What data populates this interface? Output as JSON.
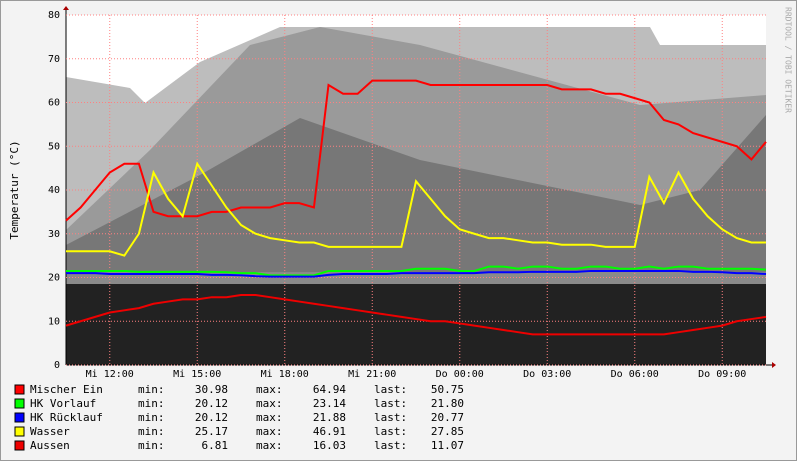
{
  "chart_data": {
    "type": "line",
    "y_label": "Temperatur (°C)",
    "watermark": "RRDTOOL / TOBI OETIKER",
    "categories": [
      null,
      null,
      null,
      "Mi 12:00",
      null,
      null,
      null,
      null,
      null,
      "Mi 15:00",
      null,
      null,
      null,
      null,
      null,
      "Mi 18:00",
      null,
      null,
      null,
      null,
      null,
      "Mi 21:00",
      null,
      null,
      null,
      null,
      null,
      "Do 00:00",
      null,
      null,
      null,
      null,
      null,
      "Do 03:00",
      null,
      null,
      null,
      null,
      null,
      "Do 06:00",
      null,
      null,
      null,
      null,
      null,
      "Do 09:00",
      null,
      null,
      null
    ],
    "ylim": [
      0,
      80
    ],
    "yticks": [
      0,
      10,
      20,
      30,
      40,
      50,
      60,
      70,
      80
    ],
    "grid": true,
    "stat_labels": [
      "min:",
      "max:",
      "last:"
    ],
    "series": [
      {
        "name": "Mischer Ein",
        "color": "#ff0000",
        "stats": [
          "30.98",
          "64.94",
          "50.75"
        ],
        "values": [
          33,
          36,
          40,
          44,
          46,
          46,
          35,
          34,
          34,
          34,
          35,
          35,
          36,
          36,
          36,
          37,
          37,
          36,
          64,
          62,
          62,
          65,
          65,
          65,
          65,
          64,
          64,
          64,
          64,
          64,
          64,
          64,
          64,
          64,
          63,
          63,
          63,
          62,
          62,
          61,
          60,
          56,
          55,
          53,
          52,
          51,
          50,
          47,
          51
        ]
      },
      {
        "name": "HK Vorlauf",
        "color": "#00ff00",
        "stats": [
          "20.12",
          "23.14",
          "21.80"
        ],
        "values": [
          21.5,
          21.5,
          21.5,
          21.5,
          21.5,
          21.3,
          21.3,
          21.3,
          21.3,
          21.3,
          21.3,
          21.2,
          21,
          21,
          20.5,
          20.5,
          20.5,
          20.5,
          21.5,
          21.5,
          21.5,
          21.5,
          21.5,
          21.5,
          22,
          22,
          22,
          21.5,
          21.5,
          22.5,
          22.5,
          22,
          22.5,
          22.5,
          22,
          22,
          22.5,
          22.5,
          22,
          22,
          22.5,
          22,
          22.5,
          22.5,
          22,
          22,
          22,
          22,
          21.8
        ]
      },
      {
        "name": "HK Rücklauf",
        "color": "#0000ff",
        "stats": [
          "20.12",
          "21.88",
          "20.77"
        ],
        "values": [
          21,
          21,
          21,
          20.8,
          20.8,
          20.8,
          20.8,
          20.8,
          20.8,
          20.8,
          20.6,
          20.6,
          20.5,
          20.3,
          20.2,
          20.2,
          20.2,
          20.2,
          20.6,
          20.8,
          20.8,
          20.8,
          20.8,
          21,
          21,
          21,
          21,
          21,
          21,
          21.2,
          21.2,
          21.2,
          21.3,
          21.3,
          21.3,
          21.3,
          21.5,
          21.5,
          21.5,
          21.5,
          21.5,
          21.5,
          21.5,
          21.3,
          21.3,
          21.2,
          21,
          21,
          20.8
        ]
      },
      {
        "name": "Wasser",
        "color": "#ffff00",
        "stats": [
          "25.17",
          "46.91",
          "27.85"
        ],
        "values": [
          26,
          26,
          26,
          26,
          25,
          30,
          44,
          38,
          34,
          46,
          41,
          36,
          32,
          30,
          29,
          28.5,
          28,
          28,
          27,
          27,
          27,
          27,
          27,
          27,
          42,
          38,
          34,
          31,
          30,
          29,
          29,
          28.5,
          28,
          28,
          27.5,
          27.5,
          27.5,
          27,
          27,
          27,
          43,
          37,
          44,
          38,
          34,
          31,
          29,
          28,
          28
        ]
      },
      {
        "name": "Aussen",
        "color": "#ee0000",
        "stats": [
          "6.81",
          "16.03",
          "11.07"
        ],
        "values": [
          9,
          10,
          11,
          12,
          12.5,
          13,
          14,
          14.5,
          15,
          15,
          15.5,
          15.5,
          16,
          16,
          15.5,
          15,
          14.5,
          14,
          13.5,
          13,
          12.5,
          12,
          11.5,
          11,
          10.5,
          10,
          10,
          9.5,
          9,
          8.5,
          8,
          7.5,
          7,
          7,
          7,
          7,
          7,
          7,
          7,
          7,
          7,
          7,
          7.5,
          8,
          8.5,
          9,
          10,
          10.5,
          11
        ]
      }
    ]
  }
}
